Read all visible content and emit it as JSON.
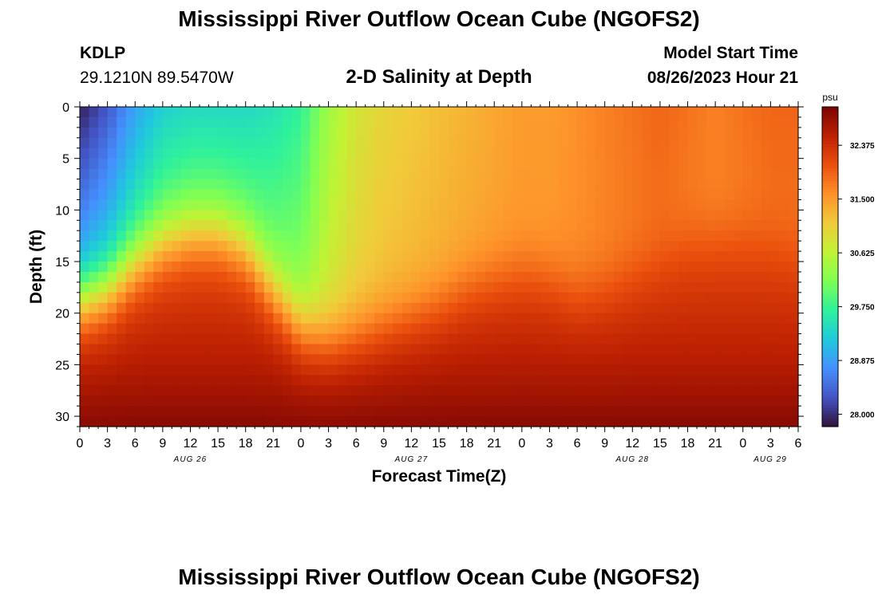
{
  "page": {
    "title": "Mississippi River Outflow Ocean Cube (NGOFS2)",
    "station_id": "KDLP",
    "station_coords": "29.1210N  89.5470W",
    "chart_title": "2-D Salinity at Depth",
    "model_start_label": "Model Start Time",
    "model_start_value": "08/26/2023 Hour 21",
    "footer_title": "Mississippi River Outflow Ocean Cube (NGOFS2)"
  },
  "chart_data": {
    "type": "heatmap",
    "title": "2-D Salinity at Depth",
    "xlabel": "Forecast Time(Z)",
    "ylabel": "Depth (ft)",
    "x_tick_labels": [
      "0",
      "3",
      "6",
      "9",
      "12",
      "15",
      "18",
      "21",
      "0",
      "3",
      "6",
      "9",
      "12",
      "15",
      "18",
      "21",
      "0",
      "3",
      "6",
      "9",
      "12",
      "15",
      "18",
      "21",
      "0",
      "3",
      "6"
    ],
    "x_range_hours": [
      0,
      78
    ],
    "date_labels": [
      {
        "label": "AUG 26",
        "hour": 12
      },
      {
        "label": "AUG 27",
        "hour": 36
      },
      {
        "label": "AUG 28",
        "hour": 60
      },
      {
        "label": "AUG 29",
        "hour": 78
      }
    ],
    "y_ticks": [
      0,
      5,
      10,
      15,
      20,
      25,
      30
    ],
    "y_range": [
      0,
      31
    ],
    "y_inverted": true,
    "colorbar": {
      "unit_label": "psu",
      "min": 27.8,
      "max": 33.0,
      "ticks": [
        28.0,
        28.875,
        29.75,
        30.625,
        31.5,
        32.375
      ],
      "tick_labels": [
        "28.000",
        "28.875",
        "29.750",
        "30.625",
        "31.500",
        "32.375"
      ]
    },
    "halocline_depth_ft": {
      "hours": [
        0,
        3,
        6,
        9,
        12,
        15,
        18,
        21,
        24,
        27,
        30,
        33,
        36,
        39,
        42,
        45,
        48,
        51,
        54,
        57,
        60,
        63,
        66,
        69,
        72,
        75,
        78
      ],
      "values": [
        19,
        18,
        15.5,
        13.5,
        12.5,
        12.5,
        14,
        18,
        21.5,
        22.5,
        22,
        21,
        20,
        19,
        17.5,
        16.5,
        16,
        16.5,
        18,
        17.5,
        16,
        14.5,
        13,
        12.5,
        12.5,
        13,
        14
      ]
    },
    "surface_salinity_psu": {
      "hours": [
        0,
        3,
        6,
        9,
        12,
        15,
        18,
        21,
        24,
        27,
        30,
        33,
        36,
        39,
        42,
        45,
        48,
        51,
        54,
        57,
        60,
        63,
        66,
        69,
        72,
        75,
        78
      ],
      "values": [
        27.9,
        28.3,
        28.9,
        29.3,
        29.4,
        29.4,
        29.4,
        29.5,
        29.7,
        30.4,
        30.8,
        31.0,
        31.1,
        31.2,
        31.3,
        31.4,
        31.5,
        31.5,
        31.6,
        31.7,
        31.8,
        31.9,
        31.8,
        31.7,
        31.8,
        31.9,
        31.9
      ]
    },
    "bottom_salinity_psu": 32.9,
    "grid": false
  },
  "colors": {
    "colormap": [
      "#30123b",
      "#4454c4",
      "#4490fe",
      "#1fc9dd",
      "#2ef19c",
      "#7eff55",
      "#c1f334",
      "#f1ca3a",
      "#fe922a",
      "#ea4f0d",
      "#be2102",
      "#7a0403"
    ]
  }
}
